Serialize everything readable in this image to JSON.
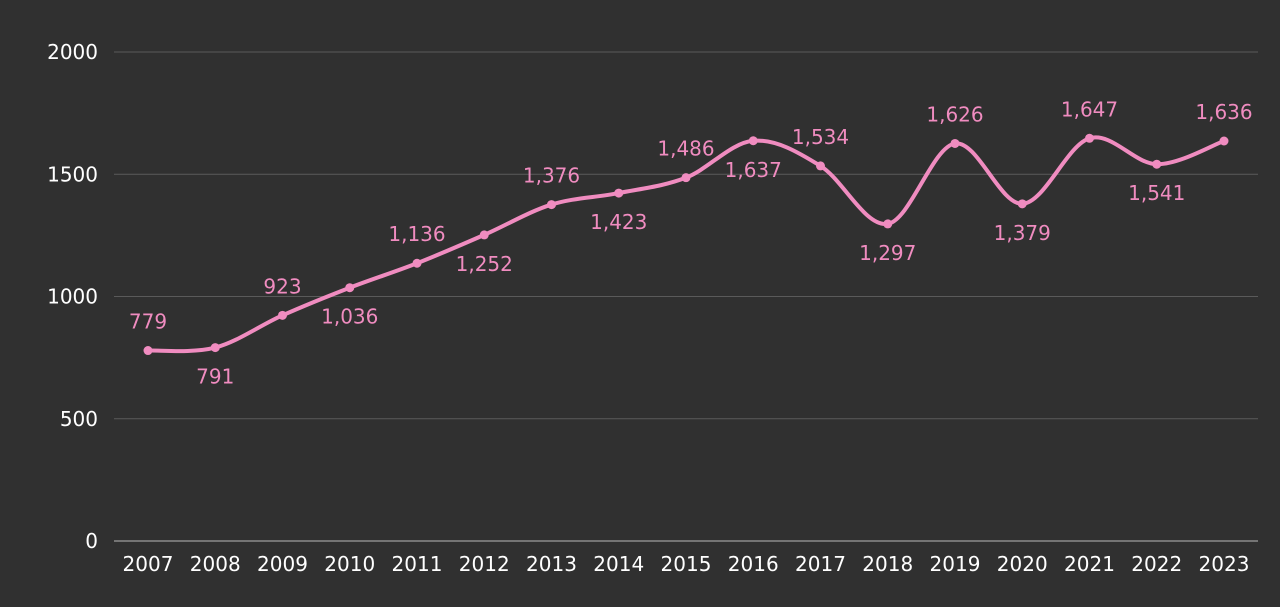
{
  "chart_data": {
    "type": "line",
    "x": [
      "2007",
      "2008",
      "2009",
      "2010",
      "2011",
      "2012",
      "2013",
      "2014",
      "2015",
      "2016",
      "2017",
      "2018",
      "2019",
      "2020",
      "2021",
      "2022",
      "2023"
    ],
    "series": [
      {
        "values": [
          779,
          791,
          923,
          1036,
          1136,
          1252,
          1376,
          1423,
          1486,
          1637,
          1534,
          1297,
          1626,
          1379,
          1647,
          1541,
          1636
        ],
        "labels": [
          "779",
          "791",
          "923",
          "1,036",
          "1,136",
          "1,252",
          "1,376",
          "1,423",
          "1,486",
          "1,637",
          "1,534",
          "1,297",
          "1,626",
          "1,379",
          "1,647",
          "1,541",
          "1,636"
        ],
        "label_positions": [
          "above",
          "below",
          "above",
          "below",
          "above",
          "below",
          "above",
          "below",
          "above",
          "below",
          "above",
          "below",
          "above",
          "below",
          "above",
          "below",
          "above"
        ],
        "color": "#f08cc0"
      }
    ],
    "ylim": [
      0,
      2000
    ],
    "yticks": [
      "0",
      "500",
      "1000",
      "1500",
      "2000"
    ],
    "ytick_values": [
      0,
      500,
      1000,
      1500,
      2000
    ],
    "grid": true,
    "smooth": true,
    "legend": "none",
    "title": "",
    "xlabel": "",
    "ylabel": ""
  },
  "colors": {
    "background": "#303030",
    "grid": "#5a5a5a",
    "axis": "#8a8a8a",
    "tick_text": "#ffffff",
    "data_label": "#f08cc0"
  }
}
